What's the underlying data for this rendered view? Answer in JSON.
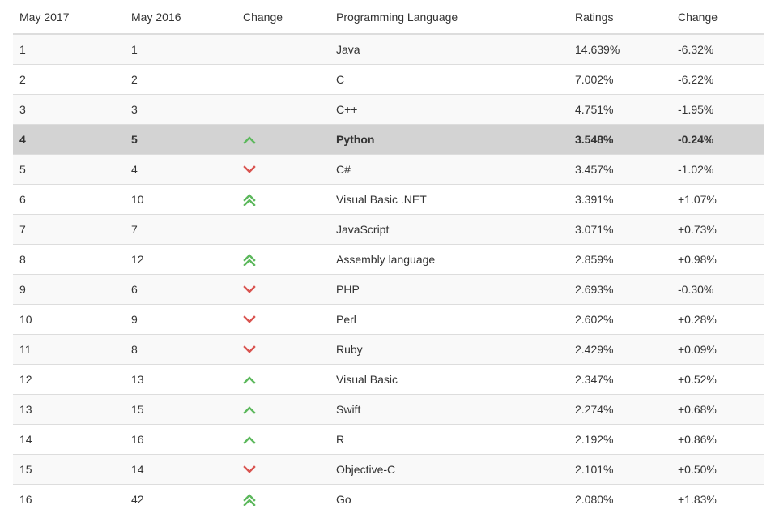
{
  "header": {
    "col1": "May 2017",
    "col2": "May 2016",
    "col3": "Change",
    "col4": "Programming Language",
    "col5": "Ratings",
    "col6": "Change"
  },
  "colors": {
    "up": "#5cb85c",
    "down": "#d9534f",
    "highlight_row": "#d3d3d3"
  },
  "rows": [
    {
      "rank_2017": "1",
      "rank_2016": "1",
      "change_icon": "none",
      "language": "Java",
      "rating": "14.639%",
      "rating_change": "-6.32%"
    },
    {
      "rank_2017": "2",
      "rank_2016": "2",
      "change_icon": "none",
      "language": "C",
      "rating": "7.002%",
      "rating_change": "-6.22%"
    },
    {
      "rank_2017": "3",
      "rank_2016": "3",
      "change_icon": "none",
      "language": "C++",
      "rating": "4.751%",
      "rating_change": "-1.95%"
    },
    {
      "rank_2017": "4",
      "rank_2016": "5",
      "change_icon": "up-chevron-icon",
      "language": "Python",
      "rating": "3.548%",
      "rating_change": "-0.24%",
      "highlight": true
    },
    {
      "rank_2017": "5",
      "rank_2016": "4",
      "change_icon": "down-chevron-icon",
      "language": "C#",
      "rating": "3.457%",
      "rating_change": "-1.02%"
    },
    {
      "rank_2017": "6",
      "rank_2016": "10",
      "change_icon": "double-up-chevron-icon",
      "language": "Visual Basic .NET",
      "rating": "3.391%",
      "rating_change": "+1.07%"
    },
    {
      "rank_2017": "7",
      "rank_2016": "7",
      "change_icon": "none",
      "language": "JavaScript",
      "rating": "3.071%",
      "rating_change": "+0.73%"
    },
    {
      "rank_2017": "8",
      "rank_2016": "12",
      "change_icon": "double-up-chevron-icon",
      "language": "Assembly language",
      "rating": "2.859%",
      "rating_change": "+0.98%"
    },
    {
      "rank_2017": "9",
      "rank_2016": "6",
      "change_icon": "down-chevron-icon",
      "language": "PHP",
      "rating": "2.693%",
      "rating_change": "-0.30%"
    },
    {
      "rank_2017": "10",
      "rank_2016": "9",
      "change_icon": "down-chevron-icon",
      "language": "Perl",
      "rating": "2.602%",
      "rating_change": "+0.28%"
    },
    {
      "rank_2017": "11",
      "rank_2016": "8",
      "change_icon": "down-chevron-icon",
      "language": "Ruby",
      "rating": "2.429%",
      "rating_change": "+0.09%"
    },
    {
      "rank_2017": "12",
      "rank_2016": "13",
      "change_icon": "up-chevron-icon",
      "language": "Visual Basic",
      "rating": "2.347%",
      "rating_change": "+0.52%"
    },
    {
      "rank_2017": "13",
      "rank_2016": "15",
      "change_icon": "up-chevron-icon",
      "language": "Swift",
      "rating": "2.274%",
      "rating_change": "+0.68%"
    },
    {
      "rank_2017": "14",
      "rank_2016": "16",
      "change_icon": "up-chevron-icon",
      "language": "R",
      "rating": "2.192%",
      "rating_change": "+0.86%"
    },
    {
      "rank_2017": "15",
      "rank_2016": "14",
      "change_icon": "down-chevron-icon",
      "language": "Objective-C",
      "rating": "2.101%",
      "rating_change": "+0.50%"
    },
    {
      "rank_2017": "16",
      "rank_2016": "42",
      "change_icon": "double-up-chevron-icon",
      "language": "Go",
      "rating": "2.080%",
      "rating_change": "+1.83%"
    }
  ]
}
